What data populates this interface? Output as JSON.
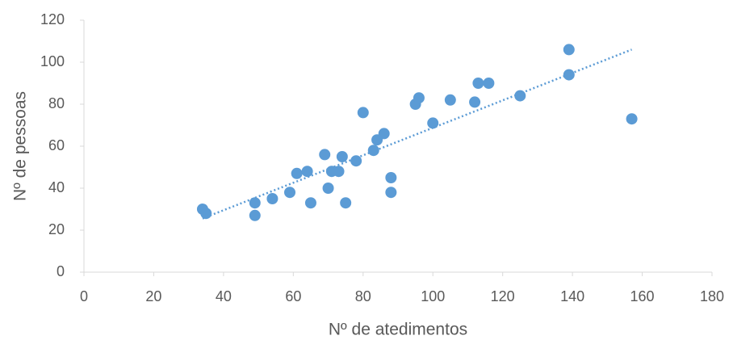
{
  "chart_data": {
    "type": "scatter",
    "x_label": "Nº  de atedimentos",
    "y_label": "Nº de pessoas",
    "color": "#5b9bd5",
    "trendline": true,
    "grid": false,
    "x": [
      34,
      35,
      49,
      49,
      54,
      59,
      61,
      64,
      65,
      69,
      70,
      71,
      73,
      74,
      75,
      78,
      80,
      83,
      84,
      86,
      88,
      88,
      95,
      96,
      100,
      105,
      112,
      113,
      116,
      125,
      139,
      139,
      157
    ],
    "values": [
      30,
      28,
      33,
      27,
      35,
      38,
      47,
      48,
      33,
      56,
      40,
      48,
      48,
      55,
      33,
      53,
      76,
      58,
      63,
      66,
      45,
      38,
      80,
      83,
      71,
      82,
      81,
      90,
      90,
      84,
      106,
      94,
      73
    ],
    "xlim": [
      0,
      180
    ],
    "xticks": [
      0,
      20,
      40,
      60,
      80,
      100,
      120,
      140,
      160,
      180
    ],
    "ylim": [
      0,
      120
    ],
    "yticks": [
      0,
      20,
      40,
      60,
      80,
      100,
      120
    ]
  }
}
